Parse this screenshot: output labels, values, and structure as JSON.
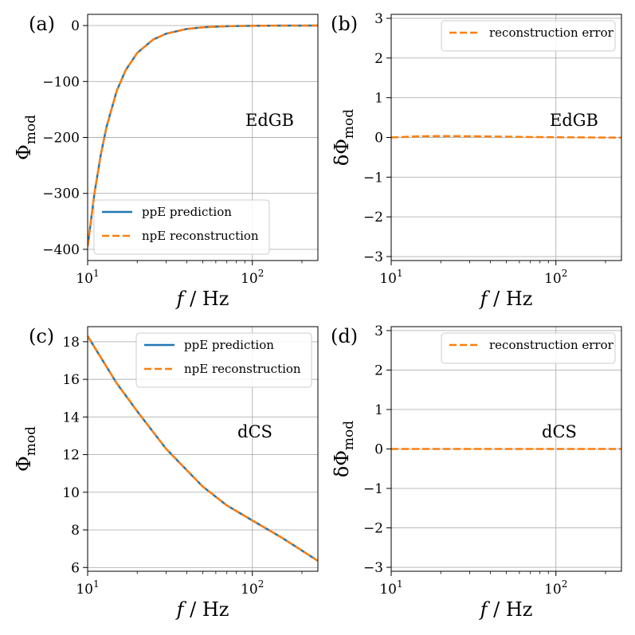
{
  "colors": {
    "ppE": "#1f77b4",
    "npE": "#ff7f0e"
  },
  "chart_data": [
    {
      "panel": "(a)",
      "type": "line",
      "xscale": "log",
      "xlim": [
        10,
        250
      ],
      "ylim": [
        -420,
        20
      ],
      "xticks": [
        10,
        100
      ],
      "xtick_labels": [
        {
          "base": "10",
          "exp": "1"
        },
        {
          "base": "10",
          "exp": "2"
        }
      ],
      "yticks": [
        -400,
        -300,
        -200,
        -100,
        0
      ],
      "ytick_labels": [
        "−400",
        "−300",
        "−200",
        "−100",
        "0"
      ],
      "xlabel": "f / Hz",
      "ylabel": {
        "main": "Φ",
        "sub": "mod"
      },
      "annotation": "EdGB",
      "legend_position": "lower-right",
      "grid": true,
      "series": [
        {
          "name": "ppE prediction",
          "style": "solid",
          "color": "#1f77b4",
          "x": [
            10,
            11,
            12,
            13,
            15,
            17,
            20,
            25,
            30,
            40,
            50,
            70,
            100,
            150,
            200,
            250
          ],
          "y": [
            -395,
            -300,
            -232,
            -182,
            -117,
            -80,
            -49,
            -25,
            -14.5,
            -6.1,
            -3.1,
            -1.1,
            -0.39,
            -0.12,
            -0.05,
            -0.026
          ]
        },
        {
          "name": "npE reconstruction",
          "style": "dashed",
          "color": "#ff7f0e",
          "x": [
            10,
            11,
            12,
            13,
            15,
            17,
            20,
            25,
            30,
            40,
            50,
            70,
            100,
            150,
            200,
            250
          ],
          "y": [
            -395,
            -300,
            -232,
            -182,
            -117,
            -80,
            -49,
            -25,
            -14.5,
            -6.1,
            -3.1,
            -1.1,
            -0.39,
            -0.12,
            -0.05,
            -0.026
          ]
        }
      ]
    },
    {
      "panel": "(b)",
      "type": "line",
      "xscale": "log",
      "xlim": [
        10,
        250
      ],
      "ylim": [
        -3.1,
        3.1
      ],
      "xticks": [
        10,
        100
      ],
      "xtick_labels": [
        {
          "base": "10",
          "exp": "1"
        },
        {
          "base": "10",
          "exp": "2"
        }
      ],
      "yticks": [
        -3,
        -2,
        -1,
        0,
        1,
        2,
        3
      ],
      "ytick_labels": [
        "−3",
        "−2",
        "−1",
        "0",
        "1",
        "2",
        "3"
      ],
      "xlabel": "f / Hz",
      "ylabel": {
        "main": "δΦ",
        "sub": "mod"
      },
      "annotation": "EdGB",
      "legend_position": "upper-right",
      "grid": true,
      "series": [
        {
          "name": "reconstruction error",
          "style": "dashed",
          "color": "#ff7f0e",
          "x": [
            10,
            15,
            20,
            30,
            50,
            70,
            100,
            150,
            250
          ],
          "y": [
            0.0,
            0.03,
            0.035,
            0.03,
            0.02,
            0.01,
            0.005,
            0.0,
            -0.005
          ]
        }
      ]
    },
    {
      "panel": "(c)",
      "type": "line",
      "xscale": "log",
      "xlim": [
        10,
        250
      ],
      "ylim": [
        5.8,
        18.8
      ],
      "xticks": [
        10,
        100
      ],
      "xtick_labels": [
        {
          "base": "10",
          "exp": "1"
        },
        {
          "base": "10",
          "exp": "2"
        }
      ],
      "yticks": [
        6,
        8,
        10,
        12,
        14,
        16,
        18
      ],
      "ytick_labels": [
        "6",
        "8",
        "10",
        "12",
        "14",
        "16",
        "18"
      ],
      "xlabel": "f / Hz",
      "ylabel": {
        "main": "Φ",
        "sub": "mod"
      },
      "annotation": "dCS",
      "legend_position": "upper-right",
      "grid": true,
      "series": [
        {
          "name": "ppE prediction",
          "style": "solid",
          "color": "#1f77b4",
          "x": [
            10,
            15,
            20,
            30,
            50,
            70,
            100,
            150,
            200,
            250
          ],
          "y": [
            18.3,
            15.8,
            14.3,
            12.3,
            10.3,
            9.3,
            8.5,
            7.6,
            6.9,
            6.35
          ]
        },
        {
          "name": "npE reconstruction",
          "style": "dashed",
          "color": "#ff7f0e",
          "x": [
            10,
            15,
            20,
            30,
            50,
            70,
            100,
            150,
            200,
            250
          ],
          "y": [
            18.3,
            15.8,
            14.3,
            12.3,
            10.3,
            9.3,
            8.5,
            7.6,
            6.9,
            6.35
          ]
        }
      ]
    },
    {
      "panel": "(d)",
      "type": "line",
      "xscale": "log",
      "xlim": [
        10,
        250
      ],
      "ylim": [
        -3.1,
        3.1
      ],
      "xticks": [
        10,
        100
      ],
      "xtick_labels": [
        {
          "base": "10",
          "exp": "1"
        },
        {
          "base": "10",
          "exp": "2"
        }
      ],
      "yticks": [
        -3,
        -2,
        -1,
        0,
        1,
        2,
        3
      ],
      "ytick_labels": [
        "−3",
        "−2",
        "−1",
        "0",
        "1",
        "2",
        "3"
      ],
      "xlabel": "f / Hz",
      "ylabel": {
        "main": "δΦ",
        "sub": "mod"
      },
      "annotation": "dCS",
      "legend_position": "upper-right",
      "grid": true,
      "series": [
        {
          "name": "reconstruction error",
          "style": "dashed",
          "color": "#ff7f0e",
          "x": [
            10,
            20,
            50,
            100,
            250
          ],
          "y": [
            0.0,
            0.0,
            0.0,
            0.0,
            0.0
          ]
        }
      ]
    }
  ]
}
